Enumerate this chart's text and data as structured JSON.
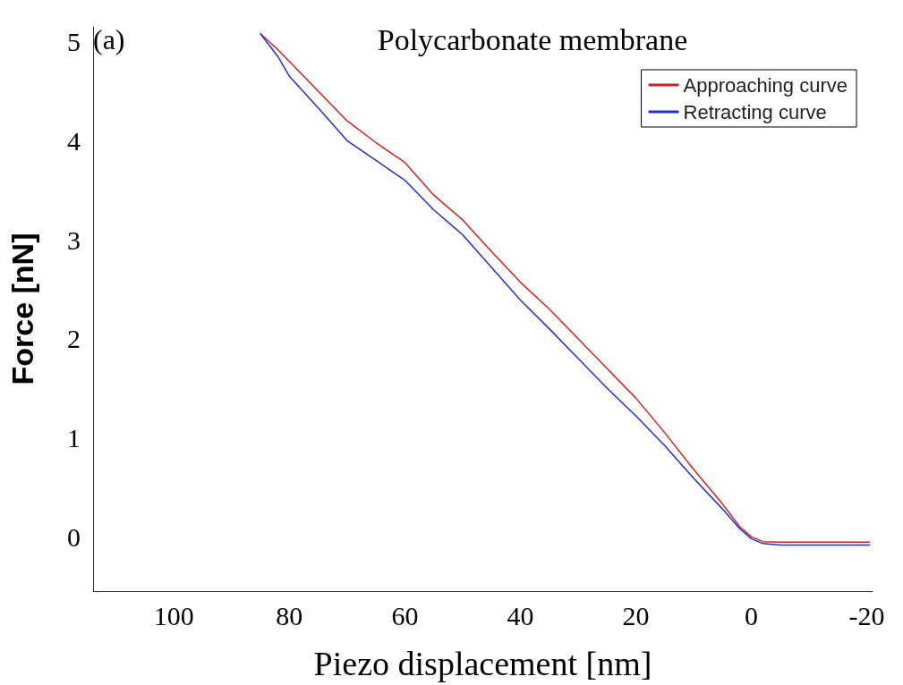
{
  "chart_data": {
    "type": "line",
    "title": "Polycarbonate membrane",
    "xlabel": "Piezo displacement [nm]",
    "ylabel": "Force [nN]",
    "annotations": [
      "(a)"
    ],
    "xlim": [
      114,
      -21
    ],
    "xticks": [
      100,
      80,
      60,
      40,
      20,
      0,
      -20
    ],
    "ylim": [
      -0.55,
      5.15
    ],
    "yticks": [
      0,
      1,
      2,
      3,
      4,
      5
    ],
    "grid": false,
    "legend": "top right",
    "marker": "none",
    "line_style": "solid",
    "series": [
      {
        "name": "Approaching curve",
        "color": "#d42020",
        "x": [
          85,
          82,
          80,
          75,
          70,
          65,
          60,
          55,
          50,
          45,
          40,
          35,
          30,
          25,
          20,
          15,
          10,
          5,
          2,
          0,
          -2,
          -5,
          -10,
          -15,
          -20.5
        ],
        "values": [
          5.08,
          4.92,
          4.8,
          4.5,
          4.2,
          3.98,
          3.78,
          3.45,
          3.2,
          2.88,
          2.57,
          2.3,
          2.0,
          1.7,
          1.4,
          1.05,
          0.68,
          0.33,
          0.1,
          0.0,
          -0.05,
          -0.055,
          -0.055,
          -0.055,
          -0.055
        ]
      },
      {
        "name": "Retracting curve",
        "color": "#2030d0",
        "x": [
          85,
          82,
          80,
          75,
          70,
          65,
          60,
          55,
          50,
          45,
          40,
          35,
          30,
          25,
          20,
          15,
          10,
          5,
          2,
          0,
          -2,
          -5,
          -10,
          -15,
          -20.5
        ],
        "values": [
          5.08,
          4.85,
          4.65,
          4.33,
          4.0,
          3.8,
          3.6,
          3.3,
          3.05,
          2.72,
          2.39,
          2.1,
          1.8,
          1.5,
          1.22,
          0.92,
          0.59,
          0.28,
          0.08,
          -0.02,
          -0.07,
          -0.085,
          -0.085,
          -0.085,
          -0.085
        ]
      }
    ]
  }
}
